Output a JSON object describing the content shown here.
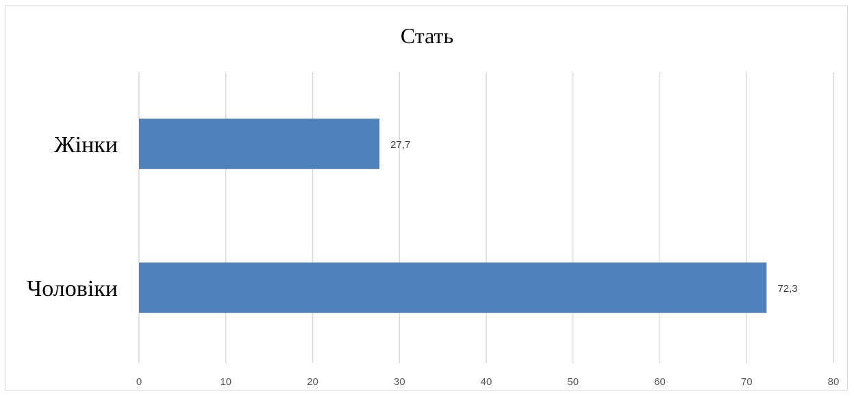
{
  "chart_data": {
    "type": "bar",
    "orientation": "horizontal",
    "title": "Стать",
    "categories": [
      "Жінки",
      "Чоловіки"
    ],
    "values": [
      27.7,
      72.3
    ],
    "data_labels": [
      "27,7",
      "72,3"
    ],
    "xlabel": "",
    "ylabel": "",
    "xlim": [
      0,
      80
    ],
    "x_ticks": [
      0,
      10,
      20,
      30,
      40,
      50,
      60,
      70,
      80
    ],
    "grid": "vertical",
    "legend": "none",
    "bar_color": "#4f81bd",
    "grid_color": "#d9d9d9"
  }
}
